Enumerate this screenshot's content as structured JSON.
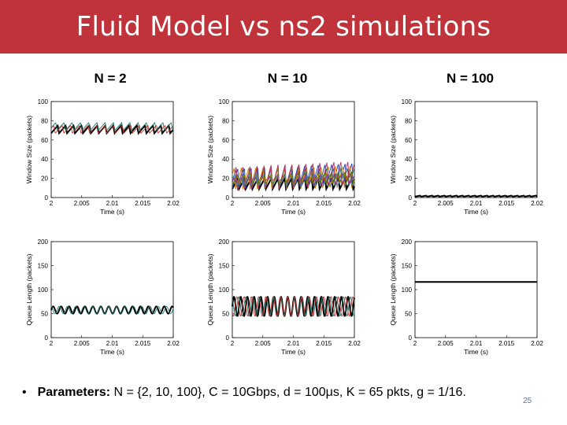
{
  "title": "Fluid Model vs ns2 simulations",
  "columns": [
    "N = 2",
    "N = 10",
    "N = 100"
  ],
  "footer": {
    "bullet": "•",
    "label": "Parameters:",
    "text": " N = {2, 10, 100}, C = 10Gbps, d = 100μs, K = 65 pkts, g = 1/16."
  },
  "page_number": "25",
  "colors": {
    "title_bar": "#c0333b",
    "sim_trace": "#000000",
    "fluid_trace": "#1a7a6e"
  },
  "chart_data": [
    {
      "type": "line",
      "id": "w2",
      "xlabel": "Time (s)",
      "ylabel": "Window Size (packets)",
      "xlim": [
        2,
        2.02
      ],
      "ylim": [
        0,
        100
      ],
      "xticks": [
        "2",
        "2.005",
        "2.01",
        "2.015",
        "2.02"
      ],
      "yticks": [
        "0",
        "20",
        "40",
        "60",
        "80",
        "100"
      ],
      "series": [
        {
          "values_min": 67,
          "values_max": 75,
          "period": 0.0013
        },
        {
          "values_min": 70,
          "values_max": 78,
          "period": 0.0013
        }
      ]
    },
    {
      "type": "line",
      "id": "w10",
      "xlabel": "Time (s)",
      "ylabel": "Window Size (packets)",
      "xlim": [
        2,
        2.02
      ],
      "ylim": [
        0,
        100
      ],
      "xticks": [
        "2",
        "2.005",
        "2.01",
        "2.015",
        "2.02"
      ],
      "yticks": [
        "0",
        "20",
        "40",
        "60",
        "80",
        "100"
      ],
      "series": [
        {
          "values_min": 12,
          "values_max": 22,
          "period": 0.0011
        },
        {
          "values_min": 10,
          "values_max": 26,
          "period": 0.0011
        }
      ]
    },
    {
      "type": "line",
      "id": "w100",
      "xlabel": "Time (s)",
      "ylabel": "Window Size (packets)",
      "xlim": [
        2,
        2.02
      ],
      "ylim": [
        0,
        100
      ],
      "xticks": [
        "2",
        "2.005",
        "2.01",
        "2.015",
        "2.02"
      ],
      "yticks": [
        "0",
        "20",
        "40",
        "60",
        "80",
        "100"
      ],
      "series": [
        {
          "values_min": 1,
          "values_max": 2,
          "period": 0.001
        }
      ]
    },
    {
      "type": "line",
      "id": "q2",
      "xlabel": "Time (s)",
      "ylabel": "Queue Length (packets)",
      "xlim": [
        2,
        2.02
      ],
      "ylim": [
        0,
        200
      ],
      "xticks": [
        "2",
        "2.005",
        "2.01",
        "2.015",
        "2.02"
      ],
      "yticks": [
        "0",
        "50",
        "100",
        "150",
        "200"
      ],
      "series": [
        {
          "values_min": 50,
          "values_max": 65,
          "period": 0.0013
        }
      ]
    },
    {
      "type": "line",
      "id": "q10",
      "xlabel": "Time (s)",
      "ylabel": "Queue Length (packets)",
      "xlim": [
        2,
        2.02
      ],
      "ylim": [
        0,
        200
      ],
      "xticks": [
        "2",
        "2.005",
        "2.01",
        "2.015",
        "2.02"
      ],
      "yticks": [
        "0",
        "50",
        "100",
        "150",
        "200"
      ],
      "series": [
        {
          "values_min": 45,
          "values_max": 85,
          "period": 0.0011
        }
      ]
    },
    {
      "type": "line",
      "id": "q100",
      "xlabel": "Time (s)",
      "ylabel": "Queue Length (packets)",
      "xlim": [
        2,
        2.02
      ],
      "ylim": [
        0,
        200
      ],
      "xticks": [
        "2",
        "2.005",
        "2.01",
        "2.015",
        "2.02"
      ],
      "yticks": [
        "0",
        "50",
        "100",
        "150",
        "200"
      ],
      "series": [
        {
          "values_min": 116,
          "values_max": 116,
          "period": 0.001
        }
      ]
    }
  ]
}
